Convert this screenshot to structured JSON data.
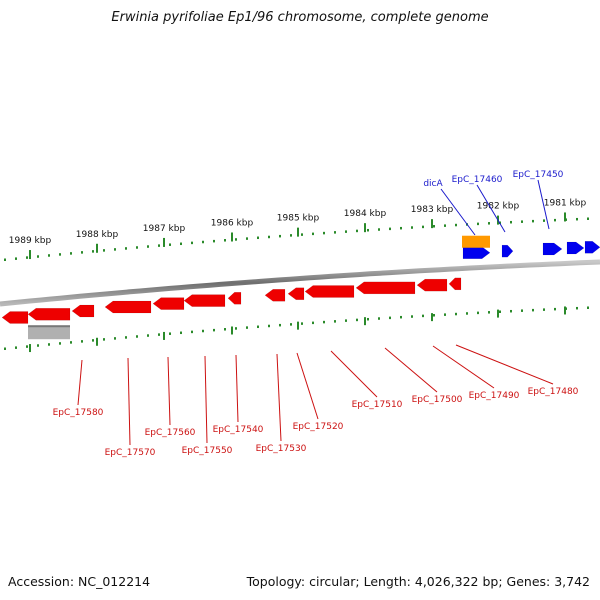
{
  "title": "Erwinia pyrifoliae Ep1/96 chromosome, complete genome",
  "footer": {
    "accession": "Accession: NC_012214",
    "summary": "Topology: circular; Length: 4,026,322 bp; Genes: 3,742"
  },
  "scale_labels": [
    "1989 kbp",
    "1988 kbp",
    "1987 kbp",
    "1986 kbp",
    "1985 kbp",
    "1984 kbp",
    "1983 kbp",
    "1982 kbp",
    "1981 kbp"
  ],
  "forward_gene_labels": [
    "dicA",
    "EpC_17460",
    "EpC_17450"
  ],
  "reverse_gene_labels": [
    "EpC_17580",
    "EpC_17570",
    "EpC_17560",
    "EpC_17550",
    "EpC_17540",
    "EpC_17530",
    "EpC_17520",
    "EpC_17510",
    "EpC_17500",
    "EpC_17490",
    "EpC_17480"
  ],
  "colors": {
    "forward_genes": "#0000ee",
    "reverse_genes": "#ee0000",
    "special_gene": "#ff9900",
    "rna_feature": "#b0b0b0",
    "ticks": "#2a8a2a",
    "backbone": "#808080",
    "forward_label": "#1a1acc",
    "reverse_label": "#cc1111"
  }
}
